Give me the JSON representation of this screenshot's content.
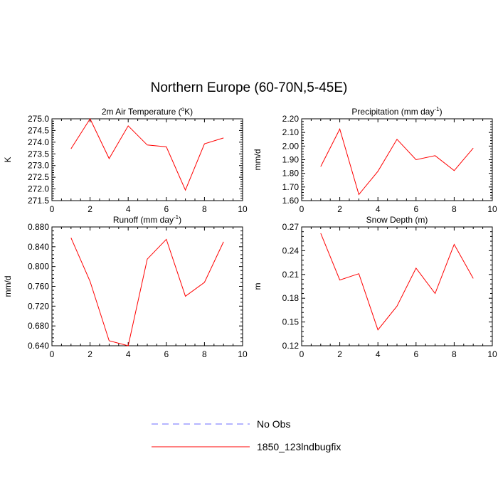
{
  "figure": {
    "title": "Northern Europe (60-70N,5-45E)"
  },
  "legend": {
    "placement": "bottom-center",
    "entries": [
      {
        "name": "No Obs",
        "color": "#6b6bff",
        "dash": "dashed"
      },
      {
        "name": "1850_123lndbugfix",
        "color": "#ff0000",
        "dash": "solid"
      }
    ]
  },
  "chart_data": [
    {
      "type": "line",
      "title_main": "2m Air Temperature (",
      "title_sup": "o",
      "title_end": "K)",
      "ylabel": "K",
      "xlabel": "",
      "xlim": [
        0,
        10
      ],
      "ylim": [
        271.5,
        275.0
      ],
      "xticks": [
        0,
        2,
        4,
        6,
        8,
        10
      ],
      "xtick_labels": [
        "0",
        "2",
        "4",
        "6",
        "8",
        "10"
      ],
      "yticks": [
        271.5,
        272.0,
        272.5,
        273.0,
        273.5,
        274.0,
        274.5,
        275.0
      ],
      "ytick_labels": [
        "271.5",
        "272.0",
        "272.5",
        "273.0",
        "273.5",
        "274.0",
        "274.5",
        "275.0"
      ],
      "grid": false,
      "series": [
        {
          "color": "#ff0000",
          "x": [
            1,
            2,
            3,
            4,
            5,
            6,
            7,
            8,
            9
          ],
          "values": [
            273.72,
            275.0,
            273.3,
            274.7,
            273.88,
            273.8,
            271.95,
            273.93,
            274.18
          ]
        }
      ]
    },
    {
      "type": "line",
      "title_main": "Precipitation (mm day",
      "title_sup": "-1",
      "title_end": ")",
      "ylabel": "mm/d",
      "xlabel": "",
      "xlim": [
        0,
        10
      ],
      "ylim": [
        1.6,
        2.2
      ],
      "xticks": [
        0,
        2,
        4,
        6,
        8,
        10
      ],
      "xtick_labels": [
        "0",
        "2",
        "4",
        "6",
        "8",
        "10"
      ],
      "yticks": [
        1.6,
        1.7,
        1.8,
        1.9,
        2.0,
        2.1,
        2.2
      ],
      "ytick_labels": [
        "1.60",
        "1.70",
        "1.80",
        "1.90",
        "2.00",
        "2.10",
        "2.20"
      ],
      "grid": false,
      "series": [
        {
          "color": "#ff0000",
          "x": [
            1,
            2,
            3,
            4,
            5,
            6,
            7,
            8,
            9
          ],
          "values": [
            1.85,
            2.125,
            1.645,
            1.815,
            2.05,
            1.9,
            1.93,
            1.82,
            1.985
          ]
        }
      ]
    },
    {
      "type": "line",
      "title_main": "Runoff (mm day",
      "title_sup": "-1",
      "title_end": ")",
      "ylabel": "mm/d",
      "xlabel": "",
      "xlim": [
        0,
        10
      ],
      "ylim": [
        0.64,
        0.88
      ],
      "xticks": [
        0,
        2,
        4,
        6,
        8,
        10
      ],
      "xtick_labels": [
        "0",
        "2",
        "4",
        "6",
        "8",
        "10"
      ],
      "yticks": [
        0.64,
        0.68,
        0.72,
        0.76,
        0.8,
        0.84,
        0.88
      ],
      "ytick_labels": [
        "0.640",
        "0.680",
        "0.720",
        "0.760",
        "0.800",
        "0.840",
        "0.880"
      ],
      "grid": false,
      "series": [
        {
          "color": "#ff0000",
          "x": [
            1,
            2,
            3,
            4,
            5,
            6,
            7,
            8,
            9
          ],
          "values": [
            0.858,
            0.77,
            0.65,
            0.64,
            0.815,
            0.855,
            0.74,
            0.768,
            0.85
          ]
        }
      ]
    },
    {
      "type": "line",
      "title_main": "Snow Depth (m)",
      "title_sup": "",
      "title_end": "",
      "ylabel": "m",
      "xlabel": "",
      "xlim": [
        0,
        10
      ],
      "ylim": [
        0.12,
        0.27
      ],
      "xticks": [
        0,
        2,
        4,
        6,
        8,
        10
      ],
      "xtick_labels": [
        "0",
        "2",
        "4",
        "6",
        "8",
        "10"
      ],
      "yticks": [
        0.12,
        0.15,
        0.18,
        0.21,
        0.24,
        0.27
      ],
      "ytick_labels": [
        "0.12",
        "0.15",
        "0.18",
        "0.21",
        "0.24",
        "0.27"
      ],
      "grid": false,
      "series": [
        {
          "color": "#ff0000",
          "x": [
            1,
            2,
            3,
            4,
            5,
            6,
            7,
            8,
            9
          ],
          "values": [
            0.262,
            0.203,
            0.211,
            0.14,
            0.17,
            0.218,
            0.186,
            0.248,
            0.205
          ]
        }
      ]
    }
  ]
}
